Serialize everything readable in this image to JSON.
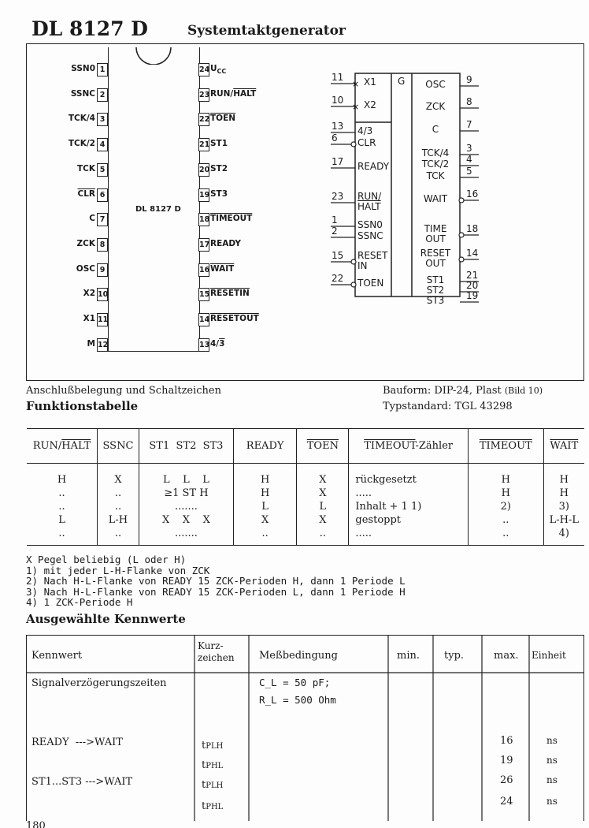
{
  "header": {
    "part": "DL 8127 D",
    "name": "Systemtaktgenerator"
  },
  "pinout": {
    "chip_label": "DL 8127 D",
    "left": [
      {
        "num": "1",
        "label": [
          {
            "t": "SSN0"
          }
        ]
      },
      {
        "num": "2",
        "label": [
          {
            "t": "SSNC"
          }
        ]
      },
      {
        "num": "3",
        "label": [
          {
            "t": "TCK/4"
          }
        ]
      },
      {
        "num": "4",
        "label": [
          {
            "t": "TCK/2"
          }
        ]
      },
      {
        "num": "5",
        "label": [
          {
            "t": "TCK"
          }
        ]
      },
      {
        "num": "6",
        "label": [
          {
            "t": "CLR",
            "o": true
          }
        ]
      },
      {
        "num": "7",
        "label": [
          {
            "t": "C"
          }
        ]
      },
      {
        "num": "8",
        "label": [
          {
            "t": "ZCK"
          }
        ]
      },
      {
        "num": "9",
        "label": [
          {
            "t": "OSC"
          }
        ]
      },
      {
        "num": "10",
        "label": [
          {
            "t": "X2"
          }
        ]
      },
      {
        "num": "11",
        "label": [
          {
            "t": "X1"
          }
        ]
      },
      {
        "num": "12",
        "label": [
          {
            "t": "M"
          }
        ]
      }
    ],
    "right": [
      {
        "num": "24",
        "label": [
          {
            "t": "U"
          },
          {
            "t": "CC",
            "sub": true
          }
        ]
      },
      {
        "num": "23",
        "label": [
          {
            "t": "RUN/"
          },
          {
            "t": "HALT",
            "o": true
          }
        ]
      },
      {
        "num": "22",
        "label": [
          {
            "t": "TOEN",
            "o": true
          }
        ]
      },
      {
        "num": "21",
        "label": [
          {
            "t": "ST1"
          }
        ]
      },
      {
        "num": "20",
        "label": [
          {
            "t": "ST2"
          }
        ]
      },
      {
        "num": "19",
        "label": [
          {
            "t": "ST3"
          }
        ]
      },
      {
        "num": "18",
        "label": [
          {
            "t": "TIMEOUT",
            "o": true
          }
        ]
      },
      {
        "num": "17",
        "label": [
          {
            "t": "READY"
          }
        ]
      },
      {
        "num": "16",
        "label": [
          {
            "t": "WAIT",
            "o": true
          }
        ]
      },
      {
        "num": "15",
        "label": [
          {
            "t": "RESETIN",
            "o": true
          }
        ]
      },
      {
        "num": "14",
        "label": [
          {
            "t": "RESETOUT",
            "o": true
          }
        ]
      },
      {
        "num": "13",
        "label": [
          {
            "t": "4/"
          },
          {
            "t": "3",
            "o": true
          }
        ]
      }
    ]
  },
  "symbol": {
    "center": "G",
    "left": [
      {
        "num": "11",
        "label": "X1",
        "y": 106,
        "mark": "x"
      },
      {
        "num": "10",
        "label": "X2",
        "y": 135,
        "mark": "x"
      },
      {
        "num": "13",
        "label": "4/3",
        "y": 168
      },
      {
        "num": "6",
        "label": "CLR",
        "y": 183,
        "neg": true
      },
      {
        "num": "17",
        "label": "READY",
        "y": 213
      },
      {
        "num": "23",
        "label": "RUN/",
        "label2": "HALT",
        "y": 257
      },
      {
        "num": "1",
        "label": "SSN0",
        "y": 287
      },
      {
        "num": "2",
        "label": "SSNC",
        "y": 301
      },
      {
        "num": "15",
        "label": "RESET",
        "label2": "IN",
        "y": 332,
        "neg": true
      },
      {
        "num": "22",
        "label": "TOEN",
        "y": 361,
        "neg": true
      }
    ],
    "right": [
      {
        "num": "9",
        "label": "OSC",
        "y": 109
      },
      {
        "num": "8",
        "label": "ZCK",
        "y": 137
      },
      {
        "num": "7",
        "label": "C",
        "y": 166
      },
      {
        "num": "3",
        "label": "TCK/4",
        "y": 196
      },
      {
        "num": "4",
        "label": "TCK/2",
        "y": 210
      },
      {
        "num": "5",
        "label": "TCK",
        "y": 225
      },
      {
        "num": "16",
        "label": "WAIT",
        "y": 254,
        "neg": true
      },
      {
        "num": "18",
        "label": "TIME",
        "label2": "OUT",
        "y": 298,
        "neg": true
      },
      {
        "num": "14",
        "label": "RESET",
        "label2": "OUT",
        "y": 329,
        "neg": true
      },
      {
        "num": "21",
        "label": "ST1",
        "y": 357
      },
      {
        "num": "20",
        "label": "ST2",
        "y": 370
      },
      {
        "num": "19",
        "label": "ST3",
        "y": 383
      }
    ]
  },
  "caption": {
    "left": "Anschlußbelegung und Schaltzeichen",
    "package": "Bauform: DIP-24, Plast",
    "bild": "(Bild 10)",
    "standard": "Typstandard: TGL 43298"
  },
  "function_table": {
    "title": "Funktionstabelle",
    "headers": [
      "RUN/HALT",
      "SSNC",
      "ST1  ST2  ST3",
      "READY",
      "TOEN",
      "TIMEOUT-Zähler",
      "TIMEOUT",
      "WAIT"
    ],
    "columns": [
      [
        "H",
        "..",
        "..",
        "L",
        ".."
      ],
      [
        "X",
        "..",
        "..",
        "L-H",
        ".."
      ],
      [
        "L    L    L",
        "≥1 ST H",
        ".......",
        "X    X    X",
        "......."
      ],
      [
        "H",
        "H",
        "L",
        "X",
        ".."
      ],
      [
        "X",
        "X",
        "L",
        "X",
        ".."
      ],
      [
        "rückgesetzt",
        ".....",
        "Inhalt + 1 1)",
        "gestoppt",
        "....."
      ],
      [
        "H",
        "H",
        "2)",
        "..",
        ".."
      ],
      [
        "H",
        "H",
        "3)",
        "L-H-L",
        "4)"
      ]
    ]
  },
  "notes": [
    "X Pegel beliebig (L oder H)",
    "1) mit jeder L-H-Flanke von ZCK",
    "2) Nach H-L-Flanke von READY 15 ZCK-Perioden H, dann 1 Periode L",
    "3) Nach H-L-Flanke von READY 15 ZCK-Perioden L, dann 1 Periode H",
    "4) 1 ZCK-Periode H"
  ],
  "kennwerte": {
    "title": "Ausgewählte Kennwerte",
    "headers": [
      "Kennwert",
      "Kurz-\nzeichen",
      "Meßbedingung",
      "min.",
      "typ.",
      "max.",
      "Einheit"
    ],
    "group": "Signalverzögerungszeiten",
    "conditions": [
      "C_L = 50 pF;",
      "R_L = 500 Ohm"
    ],
    "rows": [
      {
        "kennwert": "READY  --->WAIT",
        "symbol": "tPLH",
        "max": "16",
        "unit": "ns"
      },
      {
        "kennwert": "",
        "symbol": "tPHL",
        "max": "19",
        "unit": "ns"
      },
      {
        "kennwert": "ST1...ST3 --->WAIT",
        "symbol": "tPLH",
        "max": "26",
        "unit": "ns"
      },
      {
        "kennwert": "",
        "symbol": "tPHL",
        "max": "24",
        "unit": "ns"
      }
    ]
  },
  "page_number": "180"
}
